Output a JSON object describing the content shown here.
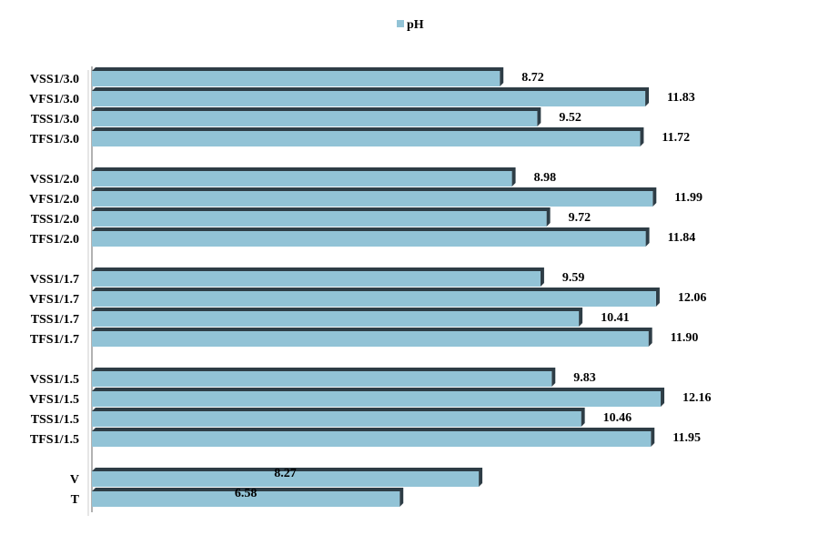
{
  "chart_data": {
    "type": "bar",
    "orientation": "horizontal",
    "categories": [
      "VSS1/3.0",
      "VFS1/3.0",
      "TSS1/3.0",
      "TFS1/3.0",
      "VSS1/2.0",
      "VFS1/2.0",
      "TSS1/2.0",
      "TFS1/2.0",
      "VSS1/1.7",
      "VFS1/1.7",
      "TSS1/1.7",
      "TFS1/1.7",
      "VSS1/1.5",
      "VFS1/1.5",
      "TSS1/1.5",
      "TFS1/1.5",
      "V",
      "T"
    ],
    "value_labels": [
      "8.72",
      "11.83",
      "9.52",
      "11.72",
      "8.98",
      "11.99",
      "9.72",
      "11.84",
      "9.59",
      "12.06",
      "10.41",
      "11.90",
      "9.83",
      "12.16",
      "10.46",
      "11.95",
      "8.27",
      "6.58"
    ],
    "series": [
      {
        "name": "pH",
        "values": [
          8.72,
          11.83,
          9.52,
          11.72,
          8.98,
          11.99,
          9.72,
          11.84,
          9.59,
          12.06,
          10.41,
          11.9,
          9.83,
          12.16,
          10.46,
          11.95,
          8.27,
          6.58
        ]
      }
    ],
    "groups": [
      4,
      4,
      4,
      4,
      2
    ],
    "xlim": [
      0,
      14
    ],
    "grid": false,
    "legend": "top-center",
    "title": "",
    "xlabel": "",
    "ylabel": ""
  },
  "colors": {
    "bar_face": "#92c3d6",
    "bar_shadow": "#2e3d46",
    "axis": "#999999"
  }
}
